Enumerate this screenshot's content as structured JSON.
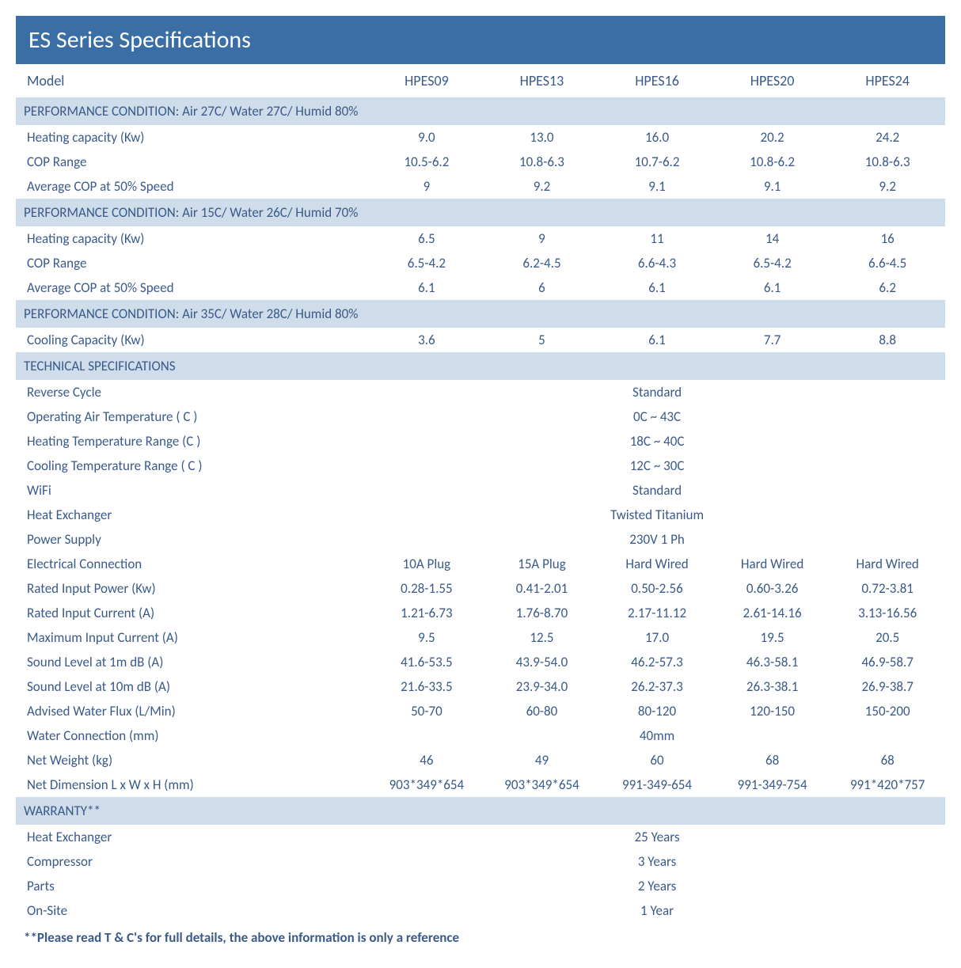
{
  "title": "ES Series Specifications",
  "headers": {
    "model": "Model",
    "cols": [
      "HPES09",
      "HPES13",
      "HPES16",
      "HPES20",
      "HPES24"
    ]
  },
  "sections": [
    {
      "heading": "PERFORMANCE CONDITION: Air 27C/ Water 27C/ Humid 80%",
      "rows": [
        {
          "label": "Heating capacity (Kw)",
          "values": [
            "9.0",
            "13.0",
            "16.0",
            "20.2",
            "24.2"
          ]
        },
        {
          "label": "COP Range",
          "values": [
            "10.5-6.2",
            "10.8-6.3",
            "10.7-6.2",
            "10.8-6.2",
            "10.8-6.3"
          ]
        },
        {
          "label": "Average COP at 50% Speed",
          "values": [
            "9",
            "9.2",
            "9.1",
            "9.1",
            "9.2"
          ]
        }
      ]
    },
    {
      "heading": "PERFORMANCE CONDITION: Air 15C/ Water 26C/ Humid 70%",
      "rows": [
        {
          "label": "Heating capacity (Kw)",
          "values": [
            "6.5",
            "9",
            "11",
            "14",
            "16"
          ]
        },
        {
          "label": "COP Range",
          "values": [
            "6.5-4.2",
            "6.2-4.5",
            "6.6-4.3",
            "6.5-4.2",
            "6.6-4.5"
          ]
        },
        {
          "label": "Average COP at 50% Speed",
          "values": [
            "6.1",
            "6",
            "6.1",
            "6.1",
            "6.2"
          ]
        }
      ]
    },
    {
      "heading": "PERFORMANCE CONDITION: Air 35C/ Water 28C/ Humid 80%",
      "rows": [
        {
          "label": "Cooling Capacity (Kw)",
          "values": [
            "3.6",
            "5",
            "6.1",
            "7.7",
            "8.8"
          ]
        }
      ]
    },
    {
      "heading": "TECHNICAL SPECIFICATIONS",
      "rows": [
        {
          "label": "Reverse Cycle",
          "span": "Standard"
        },
        {
          "label": "Operating Air Temperature ( C )",
          "span": "0C ~ 43C"
        },
        {
          "label": "Heating Temperature Range (C )",
          "span": "18C ~ 40C"
        },
        {
          "label": "Cooling Temperature Range ( C )",
          "span": "12C ~ 30C"
        },
        {
          "label": "WiFi",
          "span": "Standard"
        },
        {
          "label": "Heat Exchanger",
          "span": "Twisted Titanium"
        },
        {
          "label": "Power Supply",
          "span": "230V 1 Ph"
        },
        {
          "label": "Electrical Connection",
          "values": [
            "10A Plug",
            "15A Plug",
            "Hard Wired",
            "Hard Wired",
            "Hard Wired"
          ]
        },
        {
          "label": "Rated Input Power (Kw)",
          "values": [
            "0.28-1.55",
            "0.41-2.01",
            "0.50-2.56",
            "0.60-3.26",
            "0.72-3.81"
          ]
        },
        {
          "label": "Rated Input Current (A)",
          "values": [
            "1.21-6.73",
            "1.76-8.70",
            "2.17-11.12",
            "2.61-14.16",
            "3.13-16.56"
          ]
        },
        {
          "label": "Maximum Input Current (A)",
          "values": [
            "9.5",
            "12.5",
            "17.0",
            "19.5",
            "20.5"
          ]
        },
        {
          "label": "Sound Level at 1m dB (A)",
          "values": [
            "41.6-53.5",
            "43.9-54.0",
            "46.2-57.3",
            "46.3-58.1",
            "46.9-58.7"
          ]
        },
        {
          "label": "Sound Level at 10m dB (A)",
          "values": [
            "21.6-33.5",
            "23.9-34.0",
            "26.2-37.3",
            "26.3-38.1",
            "26.9-38.7"
          ]
        },
        {
          "label": "Advised Water Flux (L/Min)",
          "values": [
            "50-70",
            "60-80",
            "80-120",
            "120-150",
            "150-200"
          ]
        },
        {
          "label": "Water Connection (mm)",
          "span": "40mm"
        },
        {
          "label": "Net Weight (kg)",
          "values": [
            "46",
            "49",
            "60",
            "68",
            "68"
          ]
        },
        {
          "label": "Net Dimension L x W x H (mm)",
          "values": [
            "903*349*654",
            "903*349*654",
            "991-349-654",
            "991-349-754",
            "991*420*757"
          ]
        }
      ]
    },
    {
      "heading": "WARRANTY**",
      "rows": [
        {
          "label": "Heat Exchanger",
          "span": "25 Years"
        },
        {
          "label": "Compressor",
          "span": "3 Years"
        },
        {
          "label": "Parts",
          "span": "2 Years"
        },
        {
          "label": "On-Site",
          "span": "1 Year"
        }
      ]
    }
  ],
  "footnote": "**Please read T & C's for full details, the above information is only a reference",
  "style": {
    "title_bg": "#3a6ea5",
    "title_color": "#ffffff",
    "title_fontsize": 30,
    "section_bg": "#cfdce9",
    "text_color": "#3a5a8a",
    "row_fontsize": 17,
    "font_family": "Calibri, Arial, sans-serif",
    "background": "#ffffff"
  }
}
